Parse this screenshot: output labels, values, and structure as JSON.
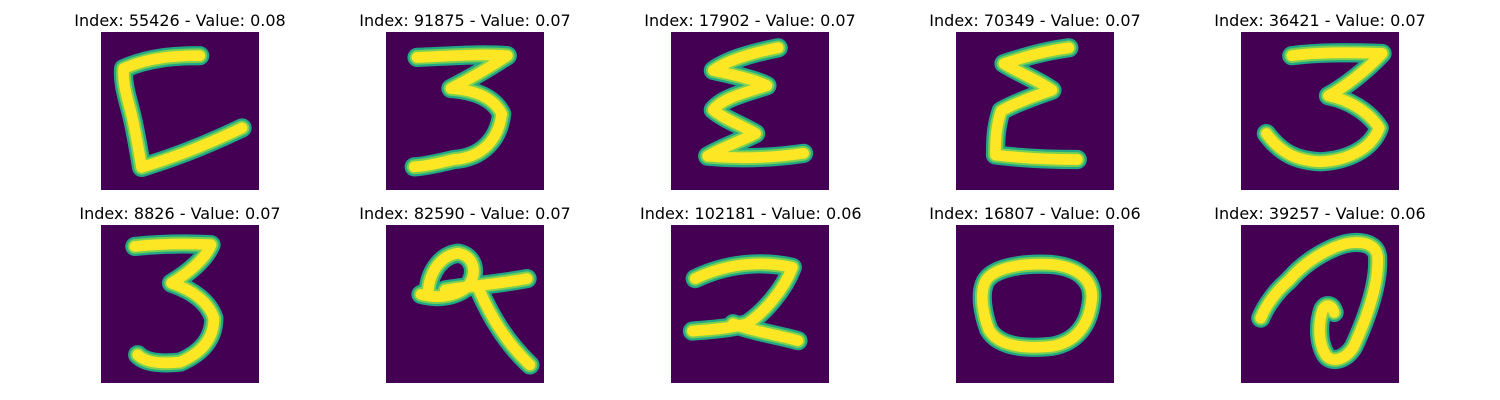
{
  "colors": {
    "background": "#440154",
    "stroke_core": "#fde725",
    "stroke_edge": "#22a884",
    "stroke_mid": "#7ad151"
  },
  "panels": [
    {
      "title": "Index: 55426 - Value: 0.08",
      "digit": "L-shape"
    },
    {
      "title": "Index: 91875 - Value: 0.07",
      "digit": "3"
    },
    {
      "title": "Index: 17902 - Value: 0.07",
      "digit": "E-shape"
    },
    {
      "title": "Index: 70349 - Value: 0.07",
      "digit": "E-shape"
    },
    {
      "title": "Index: 36421 - Value: 0.07",
      "digit": "3"
    },
    {
      "title": "Index: 8826 - Value: 0.07",
      "digit": "3"
    },
    {
      "title": "Index: 82590 - Value: 0.07",
      "digit": "q-shape"
    },
    {
      "title": "Index: 102181 - Value: 0.06",
      "digit": "2"
    },
    {
      "title": "Index: 16807 - Value: 0.06",
      "digit": "0"
    },
    {
      "title": "Index: 39257 - Value: 0.06",
      "digit": "a-shape"
    }
  ]
}
